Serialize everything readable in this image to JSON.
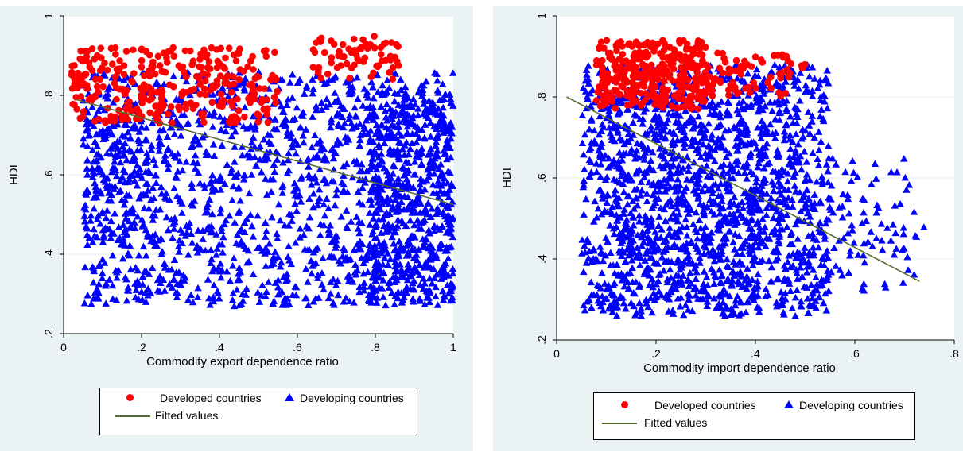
{
  "chart_data": [
    {
      "type": "scatter",
      "title": "",
      "xlabel": "Commodity export dependence ratio",
      "ylabel": "HDI",
      "xlim": [
        0,
        1
      ],
      "ylim": [
        0.2,
        1
      ],
      "xticks": [
        0,
        0.2,
        0.4,
        0.6,
        0.8,
        1
      ],
      "xtick_labels": [
        "0",
        ".2",
        ".4",
        ".6",
        ".8",
        "1"
      ],
      "yticks": [
        0.2,
        0.4,
        0.6,
        0.8,
        1
      ],
      "ytick_labels": [
        ".2",
        ".4",
        ".6",
        ".8",
        "1"
      ],
      "grid": true,
      "legend_position": "bottom",
      "series": [
        {
          "name": "Developed countries",
          "marker": "circle",
          "color": "#ff0000",
          "clusters": [
            {
              "x": [
                0.02,
                0.55
              ],
              "y": [
                0.73,
                0.92
              ],
              "n": 320
            },
            {
              "x": [
                0.64,
                0.86
              ],
              "y": [
                0.84,
                0.95
              ],
              "n": 70
            }
          ]
        },
        {
          "name": "Developing countries",
          "marker": "triangle",
          "color": "#0000ff",
          "clusters": [
            {
              "x": [
                0.05,
                1.0
              ],
              "y": [
                0.27,
                0.86
              ],
              "n": 1500
            },
            {
              "x": [
                0.78,
                1.0
              ],
              "y": [
                0.27,
                0.82
              ],
              "n": 450
            },
            {
              "x": [
                0.06,
                0.22
              ],
              "y": [
                0.42,
                0.74
              ],
              "n": 90
            }
          ]
        },
        {
          "name": "Fitted values",
          "type": "line",
          "color": "#556b2f",
          "x": [
            0.03,
            1.0
          ],
          "y": [
            0.79,
            0.525
          ]
        }
      ]
    },
    {
      "type": "scatter",
      "title": "",
      "xlabel": "Commodity import dependence ratio",
      "ylabel": "HDI",
      "xlim": [
        0,
        0.8
      ],
      "ylim": [
        0.2,
        1
      ],
      "xticks": [
        0,
        0.2,
        0.4,
        0.6,
        0.8
      ],
      "xtick_labels": [
        "0",
        ".2",
        ".4",
        ".6",
        ".8"
      ],
      "yticks": [
        0.2,
        0.4,
        0.6,
        0.8,
        1
      ],
      "ytick_labels": [
        ".2",
        ".4",
        ".6",
        ".8",
        "1"
      ],
      "grid": true,
      "legend_position": "bottom",
      "series": [
        {
          "name": "Developed countries",
          "marker": "circle",
          "color": "#ff0000",
          "clusters": [
            {
              "x": [
                0.08,
                0.3
              ],
              "y": [
                0.77,
                0.94
              ],
              "n": 320
            },
            {
              "x": [
                0.28,
                0.5
              ],
              "y": [
                0.8,
                0.91
              ],
              "n": 80
            }
          ]
        },
        {
          "name": "Developing countries",
          "marker": "triangle",
          "color": "#0000ff",
          "clusters": [
            {
              "x": [
                0.05,
                0.55
              ],
              "y": [
                0.26,
                0.88
              ],
              "n": 1400
            },
            {
              "x": [
                0.12,
                0.45
              ],
              "y": [
                0.3,
                0.8
              ],
              "n": 400
            },
            {
              "x": [
                0.45,
                0.74
              ],
              "y": [
                0.32,
                0.65
              ],
              "n": 120
            }
          ]
        },
        {
          "name": "Fitted values",
          "type": "line",
          "color": "#556b2f",
          "x": [
            0.02,
            0.73
          ],
          "y": [
            0.8,
            0.345
          ]
        }
      ]
    }
  ]
}
